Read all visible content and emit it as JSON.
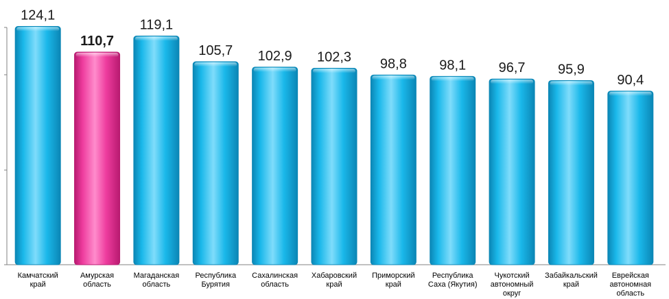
{
  "chart_data": {
    "type": "bar",
    "title": "",
    "xlabel": "",
    "ylabel": "",
    "ylim": [
      0,
      128
    ],
    "grid": false,
    "categories": [
      [
        "Камчатский",
        "край"
      ],
      [
        "Амурская",
        "область"
      ],
      [
        "Магаданская",
        "область"
      ],
      [
        "Республика",
        "Бурятия"
      ],
      [
        "Сахалинская",
        "область"
      ],
      [
        "Хабаровский",
        "край"
      ],
      [
        "Приморский",
        "край"
      ],
      [
        "Республика",
        "Саха (Якутия)"
      ],
      [
        "Чукотский",
        "автономный",
        "округ"
      ],
      [
        "Забайкальский",
        "край"
      ],
      [
        "Еврейская",
        "автономная",
        "область"
      ]
    ],
    "values": [
      124.1,
      110.7,
      119.1,
      105.7,
      102.9,
      102.3,
      98.8,
      98.1,
      96.7,
      95.9,
      90.4
    ],
    "value_labels": [
      "124,1",
      "110,7",
      "119,1",
      "105,7",
      "102,9",
      "102,3",
      "98,8",
      "98,1",
      "96,7",
      "95,9",
      "90,4"
    ],
    "highlight_index": 1,
    "colors": {
      "bar": "#1ab8ea",
      "bar_light": "#7fdcfb",
      "bar_dark": "#0b86b5",
      "highlight": "#ee3c9e",
      "highlight_light": "#ff8ccc",
      "highlight_dark": "#b81a70",
      "axis": "#808080"
    }
  }
}
